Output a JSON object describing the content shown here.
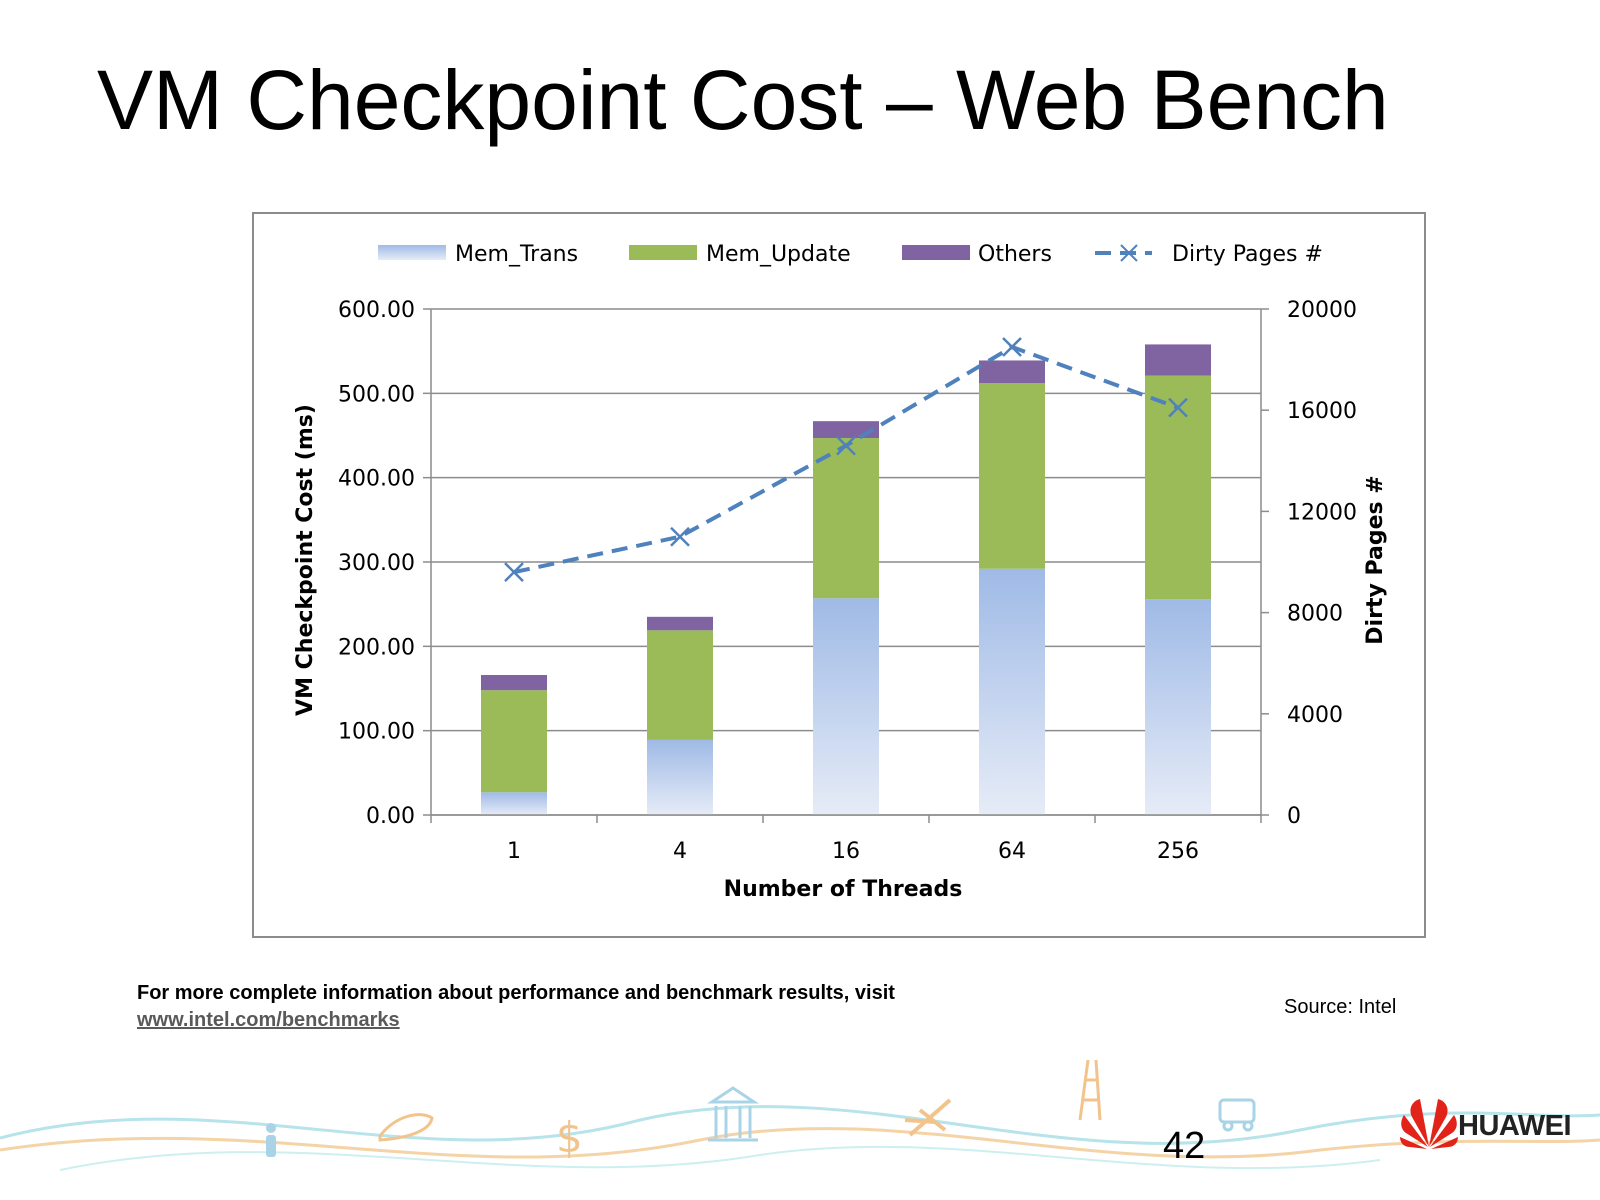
{
  "slide": {
    "title": "VM Checkpoint Cost – Web Bench",
    "footnote_text": "For more complete information about performance and benchmark results, visit ",
    "footnote_link": "www.intel.com/benchmarks",
    "source": "Source: Intel",
    "page_number": "42",
    "brand_name": "HUAWEI"
  },
  "colors": {
    "mem_trans_top": "#9fbae6",
    "mem_trans_bottom": "#e6ecf7",
    "mem_update": "#9bbb59",
    "others": "#8064a2",
    "dirty_pages": "#4f81bd",
    "grid": "#8c8c8c",
    "frame": "#8c8c8c"
  },
  "chart_data": {
    "type": "bar",
    "stacked": true,
    "categories": [
      "1",
      "4",
      "16",
      "64",
      "256"
    ],
    "series": [
      {
        "name": "Mem_Trans",
        "values": [
          27,
          89,
          257,
          292,
          256
        ],
        "axis": "left",
        "color_key": "mem_trans_top"
      },
      {
        "name": "Mem_Update",
        "values": [
          121,
          130,
          190,
          220,
          265
        ],
        "axis": "left",
        "color_key": "mem_update"
      },
      {
        "name": "Others",
        "values": [
          18,
          16,
          20,
          27,
          37
        ],
        "axis": "left",
        "color_key": "others"
      }
    ],
    "line_series": [
      {
        "name": "Dirty Pages #",
        "type": "line",
        "style": "dashed",
        "marker": "x",
        "axis": "right",
        "values": [
          9600,
          11000,
          14600,
          18500,
          16100
        ],
        "color_key": "dirty_pages"
      }
    ],
    "xlabel": "Number of Threads",
    "ylabel": "VM Checkpoint Cost (ms)",
    "y2label": "Dirty Pages #",
    "ylim": [
      0,
      600
    ],
    "y2lim": [
      0,
      20000
    ],
    "yticks": [
      "0.00",
      "100.00",
      "200.00",
      "300.00",
      "400.00",
      "500.00",
      "600.00"
    ],
    "y2ticks": [
      "0",
      "4000",
      "8000",
      "12000",
      "16000",
      "20000"
    ],
    "grid": true,
    "legend_position": "top"
  }
}
